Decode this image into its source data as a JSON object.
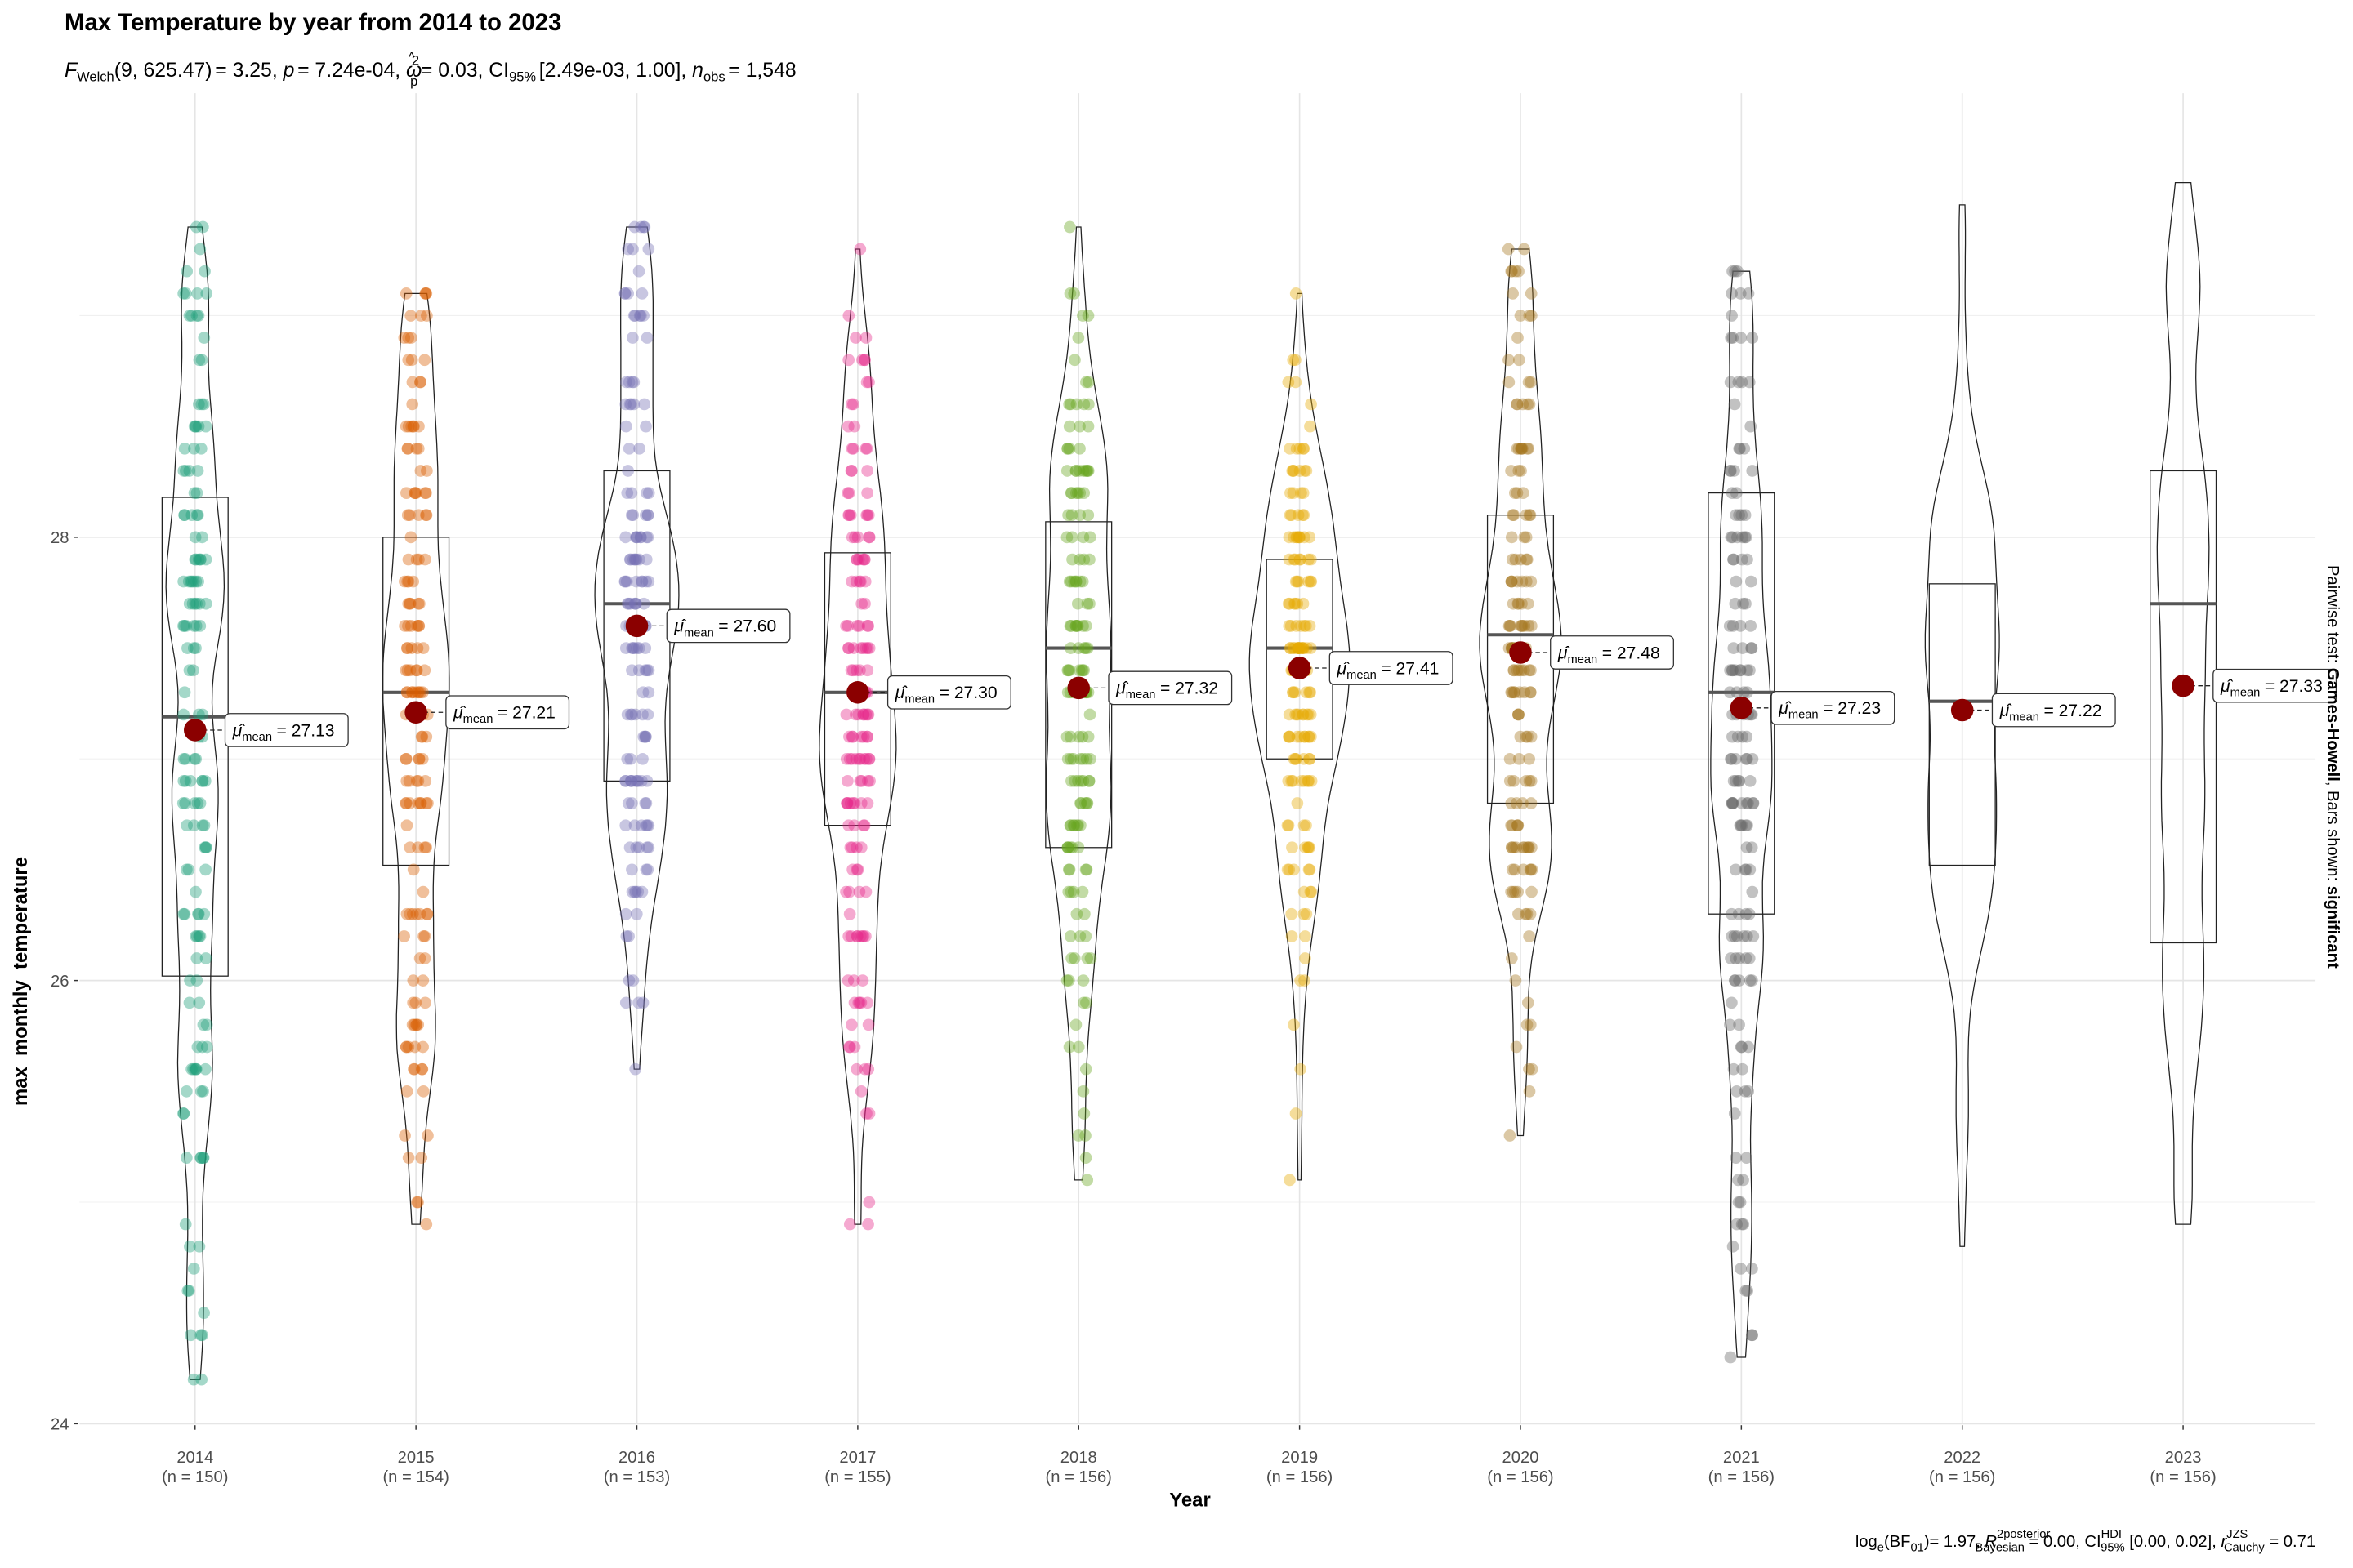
{
  "chart_data": {
    "type": "violin-box",
    "title": "Max Temperature by year from 2014 to 2023",
    "subtitle": {
      "F": "F",
      "welch": "Welch",
      "df": "(9, 625.47)",
      "fval": "= 3.25, ",
      "p": "p",
      "pval": "= 7.24e-04, ",
      "omega": "ω",
      "omega_hat": "^",
      "omega_sub": "p",
      "omega_sup": "2",
      "omega_val": "= 0.03, CI",
      "ci_sub": "95%",
      "ci_val": "[2.49e-03, 1.00], ",
      "n": "n",
      "n_sub": "obs",
      "n_val": "= 1,548"
    },
    "caption": {
      "log": "log",
      "log_sub": "e",
      "bf": "(BF",
      "bf_sub": "01",
      "bf_val": ")= 1.97, ",
      "R": "R",
      "R_hat": "^",
      "R_sup": "2posterior",
      "R_sub": "Bayesian",
      "R_val": " = 0.00, CI",
      "ci_sup": "HDI",
      "ci_sub": "95%",
      "ci_val": " [0.00, 0.02], ",
      "r": "r",
      "r_sup": "JZS",
      "r_sub": "Cauchy",
      "r_val": " = 0.71"
    },
    "right_label": {
      "a": "Pairwise test: ",
      "b": "Games-Howell",
      "c": ", Bars shown: ",
      "d": "significant"
    },
    "xlabel": "Year",
    "ylabel": "max_monthly_temperature",
    "ylim": [
      24,
      29.7
    ],
    "yticks": [
      24,
      26,
      28
    ],
    "mean_label_prefix": "μ",
    "mean_label_sub": "mean",
    "mean_color": "#8B0000",
    "groups": [
      {
        "year": "2014",
        "n_label": "(n = 150)",
        "n": 150,
        "mean": 27.13,
        "mean_label": "= 27.13",
        "median": 27.19,
        "q1": 26.02,
        "q3": 28.18,
        "min": 24.2,
        "max": 29.4,
        "color": "#1B9E77"
      },
      {
        "year": "2015",
        "n_label": "(n = 154)",
        "n": 154,
        "mean": 27.21,
        "mean_label": "= 27.21",
        "median": 27.3,
        "q1": 26.52,
        "q3": 28.0,
        "min": 24.9,
        "max": 29.1,
        "color": "#D95F02"
      },
      {
        "year": "2016",
        "n_label": "(n = 153)",
        "n": 153,
        "mean": 27.6,
        "mean_label": "= 27.60",
        "median": 27.7,
        "q1": 26.9,
        "q3": 28.3,
        "min": 25.6,
        "max": 29.4,
        "color": "#7570B3"
      },
      {
        "year": "2017",
        "n_label": "(n = 155)",
        "n": 155,
        "mean": 27.3,
        "mean_label": "= 27.30",
        "median": 27.3,
        "q1": 26.7,
        "q3": 27.93,
        "min": 24.9,
        "max": 29.3,
        "color": "#E7298A"
      },
      {
        "year": "2018",
        "n_label": "(n = 156)",
        "n": 156,
        "mean": 27.32,
        "mean_label": "= 27.32",
        "median": 27.5,
        "q1": 26.6,
        "q3": 28.07,
        "min": 25.1,
        "max": 29.4,
        "color": "#66A61E"
      },
      {
        "year": "2019",
        "n_label": "(n = 156)",
        "n": 156,
        "mean": 27.41,
        "mean_label": "= 27.41",
        "median": 27.5,
        "q1": 27.0,
        "q3": 27.9,
        "min": 25.1,
        "max": 29.1,
        "color": "#E6AB02"
      },
      {
        "year": "2020",
        "n_label": "(n = 156)",
        "n": 156,
        "mean": 27.48,
        "mean_label": "= 27.48",
        "median": 27.56,
        "q1": 26.8,
        "q3": 28.1,
        "min": 25.3,
        "max": 29.3,
        "color": "#A6761D"
      },
      {
        "year": "2021",
        "n_label": "(n = 156)",
        "n": 156,
        "mean": 27.23,
        "mean_label": "= 27.23",
        "median": 27.3,
        "q1": 26.3,
        "q3": 28.2,
        "min": 24.3,
        "max": 29.2,
        "color": "#666666"
      },
      {
        "year": "2022",
        "n_label": "(n = 156)",
        "n": 156,
        "mean": 27.22,
        "mean_label": "= 27.22",
        "median": 27.26,
        "q1": 26.52,
        "q3": 27.79,
        "min": 24.8,
        "max": 29.5,
        "color": null
      },
      {
        "year": "2023",
        "n_label": "(n = 156)",
        "n": 156,
        "mean": 27.33,
        "mean_label": "= 27.33",
        "median": 27.7,
        "q1": 26.17,
        "q3": 28.3,
        "min": 24.9,
        "max": 29.6,
        "color": null
      }
    ]
  }
}
